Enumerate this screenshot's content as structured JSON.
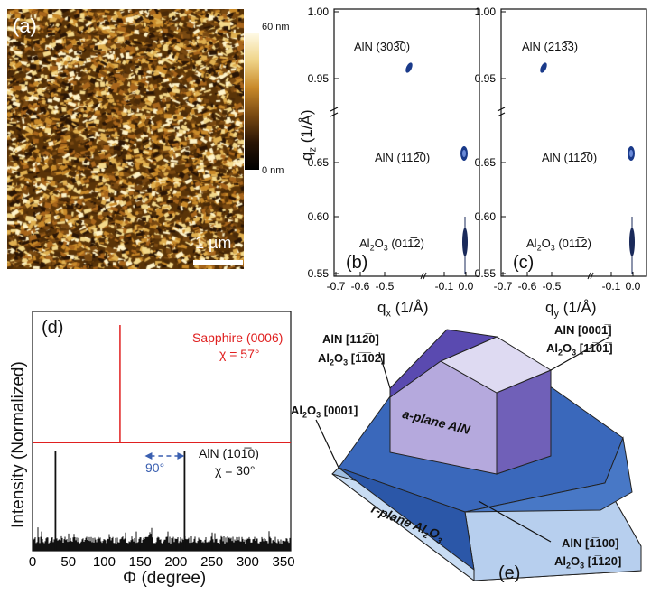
{
  "panel_a": {
    "label": "(a)",
    "scalebar_label": "1 µm",
    "colorbar_max": "60 nm",
    "colorbar_min": "0 nm"
  },
  "panel_b": {
    "label": "(b)",
    "xaxis_label": "q",
    "xaxis_sub": "x",
    "xaxis_unit": " (1/Å)",
    "yaxis_label": "q",
    "yaxis_sub": "z",
    "yaxis_unit": " (1/Å)",
    "peak1_label": "AlN (303̅0)",
    "peak2_label": "AlN (112̅0)",
    "peak3_label_a": "Al",
    "peak3_label_b": "O",
    "peak3_label_c": " (011̅2)"
  },
  "panel_c": {
    "label": "(c)",
    "xaxis_label": "q",
    "xaxis_sub": "y",
    "xaxis_unit": " (1/Å)",
    "peak1_label": "AlN (213̅3)",
    "peak2_label": "AlN (112̅0)",
    "peak3_label_a": "Al",
    "peak3_label_b": "O",
    "peak3_label_c": " (011̅2)"
  },
  "rsm_yticks_top": [
    "1.00",
    "0.95"
  ],
  "rsm_yticks_bottom": [
    "0.65",
    "0.60",
    "0.55"
  ],
  "rsm_xticks": [
    "-0.7",
    "-0.6",
    "-0.5",
    "-0.1",
    "0.0"
  ],
  "panel_d": {
    "label": "(d)",
    "ylabel": "Intensity (Normalized)",
    "xlabel": "Φ (degree)",
    "sapphire_label": "Sapphire (0006)",
    "sapphire_chi": "χ = 57°",
    "aln_label": "AlN (101̅0)",
    "aln_chi": "χ = 30°",
    "angle_label": "90°",
    "xticks": [
      "0",
      "50",
      "100",
      "150",
      "200",
      "250",
      "300",
      "350"
    ],
    "sapphire_color": "#e02020",
    "aln_color": "#111111",
    "arrow_color": "#3a5fb0"
  },
  "chart_data": {
    "type": "line",
    "title": "",
    "xlabel": "Φ (degree)",
    "ylabel": "Intensity (Normalized)",
    "xlim": [
      0,
      360
    ],
    "series": [
      {
        "name": "Sapphire (0006)",
        "peaks_x": [
          122
        ]
      },
      {
        "name": "AlN (101̅0)",
        "peaks_x": [
          32,
          212
        ]
      }
    ]
  },
  "panel_e": {
    "label": "(e)",
    "top_label_1": "AlN [112̅0]",
    "top_label_2a": "Al",
    "top_label_2b": "O",
    "top_label_2c": " [1̅1̅02]",
    "right_label_1": "AlN [0001̅]",
    "right_label_2a": "Al",
    "right_label_2b": "O",
    "right_label_2c": " [11̅01̅]",
    "left_label_a": "Al",
    "left_label_b": "O",
    "left_label_c": " [0001]",
    "bottom_label_1": "AlN [1̅100]",
    "bottom_label_2a": "Al",
    "bottom_label_2b": "O",
    "bottom_label_2c": " [1̅120]",
    "aplane_label": "a-plane AlN",
    "rplane_label_a": "r-plane Al",
    "rplane_label_b": "O",
    "sub2": "2",
    "sub3": "3"
  }
}
